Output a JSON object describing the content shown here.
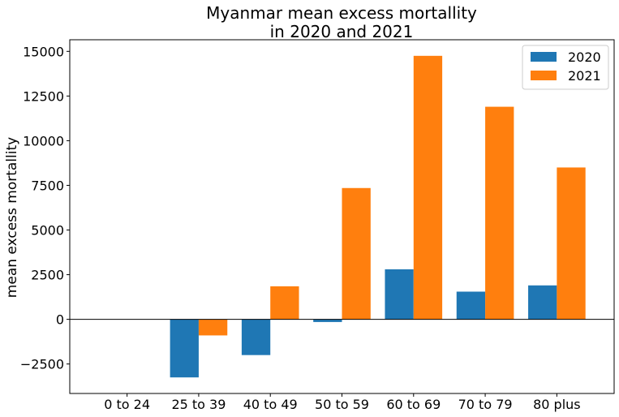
{
  "chart_data": {
    "type": "bar",
    "title_lines": [
      "Myanmar mean excess mortallity",
      "in 2020 and 2021"
    ],
    "ylabel": "mean excess mortallity",
    "xlabel": "",
    "categories": [
      "0 to 24",
      "25 to 39",
      "40 to 49",
      "50 to 59",
      "60 to 69",
      "70 to 79",
      "80 plus"
    ],
    "series": [
      {
        "name": "2020",
        "color": "#1f77b4",
        "values": [
          0,
          -3250,
          -2000,
          -150,
          2800,
          1550,
          1900
        ]
      },
      {
        "name": "2021",
        "color": "#ff7f0e",
        "values": [
          0,
          -900,
          1850,
          7350,
          14750,
          11900,
          8500
        ]
      }
    ],
    "yticks": [
      -2500,
      0,
      2500,
      5000,
      7500,
      10000,
      12500,
      15000
    ],
    "ytick_labels": [
      "−2500",
      "0",
      "2500",
      "5000",
      "7500",
      "10000",
      "12500",
      "15000"
    ],
    "ylim": [
      -4150,
      15650
    ],
    "zero_line": true,
    "grid": false,
    "legend_position": "top-right"
  }
}
